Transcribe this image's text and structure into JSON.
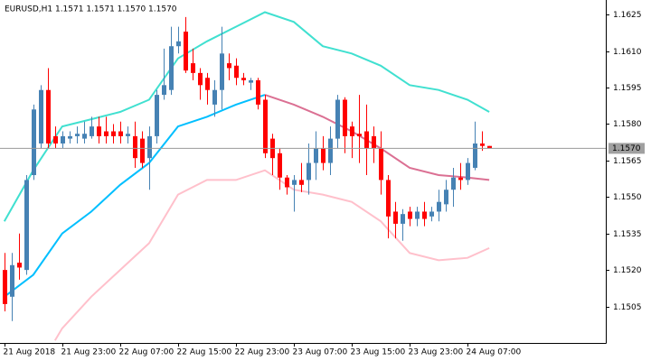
{
  "chart_data": {
    "type": "candlestick",
    "title": "EURUSD,H1  1.1571 1.1571 1.1570 1.1570",
    "up_color": "#4682b4",
    "down_color": "#ff0000",
    "open": [
      1.152,
      1.1509,
      1.1523,
      1.152,
      1.1559,
      1.1572,
      1.1594,
      1.1575,
      1.1572,
      1.1574,
      1.1575,
      1.1574,
      1.1575,
      1.1579,
      1.1577,
      1.1577,
      1.1577,
      1.1575,
      1.1575,
      1.1574,
      1.1566,
      1.1575,
      1.1592,
      1.1594,
      1.1612,
      1.1618,
      1.1605,
      1.1601,
      1.1599,
      1.1588,
      1.1594,
      1.1605,
      1.1604,
      1.1599,
      1.1597,
      1.1598,
      1.159,
      1.1574,
      1.1568,
      1.1558,
      1.1555,
      1.1557,
      1.1557,
      1.1564,
      1.157,
      1.1564,
      1.1574,
      1.159,
      1.1579,
      1.1576,
      1.1577,
      1.1575,
      1.157,
      1.1557,
      1.1544,
      1.1539,
      1.1544,
      1.1541,
      1.1544,
      1.1542,
      1.1544,
      1.1547,
      1.1553,
      1.1558,
      1.1557,
      1.1562,
      1.1572,
      1.1571
    ],
    "high": [
      1.1527,
      1.1527,
      1.1535,
      1.1559,
      1.1588,
      1.1596,
      1.1603,
      1.1579,
      1.1577,
      1.1577,
      1.1579,
      1.1581,
      1.1583,
      1.1583,
      1.1583,
      1.158,
      1.1581,
      1.1579,
      1.1581,
      1.1577,
      1.1579,
      1.1594,
      1.1611,
      1.162,
      1.162,
      1.1624,
      1.1611,
      1.1603,
      1.1601,
      1.1598,
      1.162,
      1.1609,
      1.1607,
      1.1601,
      1.1599,
      1.1599,
      1.1592,
      1.1576,
      1.157,
      1.1559,
      1.1559,
      1.1564,
      1.1572,
      1.1577,
      1.1575,
      1.1579,
      1.1592,
      1.1591,
      1.1581,
      1.1592,
      1.1588,
      1.1579,
      1.1577,
      1.1559,
      1.1548,
      1.1545,
      1.1546,
      1.1546,
      1.1548,
      1.1546,
      1.1553,
      1.1557,
      1.1562,
      1.1564,
      1.1566,
      1.1581,
      1.1577,
      1.1571
    ],
    "low": [
      1.1503,
      1.1499,
      1.1516,
      1.1518,
      1.1557,
      1.157,
      1.157,
      1.157,
      1.157,
      1.1572,
      1.1572,
      1.1572,
      1.1574,
      1.1572,
      1.1572,
      1.1572,
      1.1572,
      1.1572,
      1.1562,
      1.1562,
      1.1553,
      1.1572,
      1.159,
      1.1592,
      1.1609,
      1.1601,
      1.1598,
      1.159,
      1.1588,
      1.1583,
      1.1586,
      1.1598,
      1.1596,
      1.1596,
      1.1594,
      1.1586,
      1.1566,
      1.1559,
      1.1553,
      1.1551,
      1.1544,
      1.1552,
      1.1551,
      1.1557,
      1.1561,
      1.1559,
      1.157,
      1.1568,
      1.1566,
      1.1564,
      1.1559,
      1.1564,
      1.1551,
      1.1533,
      1.1533,
      1.1532,
      1.1538,
      1.1538,
      1.1538,
      1.154,
      1.154,
      1.1544,
      1.1546,
      1.1553,
      1.1555,
      1.1561,
      1.1569,
      1.157
    ],
    "close": [
      1.1506,
      1.1522,
      1.1521,
      1.1557,
      1.1586,
      1.1594,
      1.1572,
      1.1572,
      1.1575,
      1.1575,
      1.1576,
      1.1576,
      1.1579,
      1.1575,
      1.1575,
      1.1575,
      1.1575,
      1.1576,
      1.1566,
      1.1564,
      1.1575,
      1.1592,
      1.1596,
      1.1612,
      1.1614,
      1.1602,
      1.1601,
      1.1596,
      1.1594,
      1.1594,
      1.1609,
      1.1603,
      1.1599,
      1.1598,
      1.1598,
      1.1588,
      1.1568,
      1.1566,
      1.1558,
      1.1554,
      1.1557,
      1.1555,
      1.1564,
      1.157,
      1.1564,
      1.1574,
      1.159,
      1.1575,
      1.1575,
      1.1575,
      1.157,
      1.157,
      1.1557,
      1.1542,
      1.1539,
      1.1543,
      1.1541,
      1.1544,
      1.1541,
      1.1544,
      1.1548,
      1.1553,
      1.1558,
      1.1557,
      1.1564,
      1.1572,
      1.1571,
      1.157
    ],
    "lines": [
      {
        "color": "#40e0d0",
        "x": [
          0,
          4,
          8,
          12,
          16,
          20,
          24,
          28,
          32,
          36,
          40,
          44,
          48,
          52,
          56,
          60,
          64,
          67
        ],
        "values": [
          1.154,
          1.1561,
          1.1579,
          1.1582,
          1.1585,
          1.159,
          1.1607,
          1.1614,
          1.162,
          1.1626,
          1.1622,
          1.1612,
          1.1609,
          1.1604,
          1.1596,
          1.1594,
          1.159,
          1.1585
        ]
      },
      {
        "color": "#ffc0cb",
        "x": [
          7,
          8,
          12,
          16,
          20,
          24,
          28,
          32,
          36,
          40,
          44,
          48,
          52,
          56,
          60,
          64,
          67
        ],
        "values": [
          1.1491,
          1.1496,
          1.1509,
          1.152,
          1.1531,
          1.1551,
          1.1557,
          1.1557,
          1.1561,
          1.1553,
          1.1551,
          1.1548,
          1.154,
          1.1527,
          1.1524,
          1.1525,
          1.1529
        ]
      },
      {
        "color": "#00bfff",
        "x": [
          0,
          4,
          8,
          12,
          16,
          20,
          24,
          28,
          32,
          36
        ],
        "values": [
          1.1509,
          1.1518,
          1.1535,
          1.1544,
          1.1555,
          1.1564,
          1.1579,
          1.1583,
          1.1588,
          1.1592
        ]
      },
      {
        "color": "#db7093",
        "x": [
          36,
          40,
          44,
          48,
          52,
          56,
          60,
          64,
          67
        ],
        "values": [
          1.1592,
          1.1588,
          1.1583,
          1.1577,
          1.157,
          1.1562,
          1.1559,
          1.1558,
          1.1557
        ]
      }
    ],
    "current_price": {
      "value": 1.157,
      "label": "1.1570"
    },
    "xlim": [
      -0.6,
      83.1
    ],
    "ylim": [
      1.149,
      1.1631
    ],
    "yticks": [
      1.1625,
      {
        "value": 1.161,
        "label": "1.1610"
      },
      1.1595,
      {
        "value": 1.158,
        "label": "1.1580"
      },
      1.1565,
      {
        "value": 1.155,
        "label": "1.1550"
      },
      1.1535,
      {
        "value": 1.152,
        "label": "1.1520"
      },
      1.1505
    ],
    "xticks": [
      {
        "value": 0,
        "label": "21 Aug 2018"
      },
      {
        "value": 8,
        "label": "21 Aug 23:00"
      },
      {
        "value": 16,
        "label": "22 Aug 07:00"
      },
      {
        "value": 24,
        "label": "22 Aug 15:00"
      },
      {
        "value": 32,
        "label": "22 Aug 23:00"
      },
      {
        "value": 40,
        "label": "23 Aug 07:00"
      },
      {
        "value": 48,
        "label": "23 Aug 15:00"
      },
      {
        "value": 56,
        "label": "23 Aug 23:00"
      },
      {
        "value": 64,
        "label": "24 Aug 07:00"
      }
    ]
  }
}
